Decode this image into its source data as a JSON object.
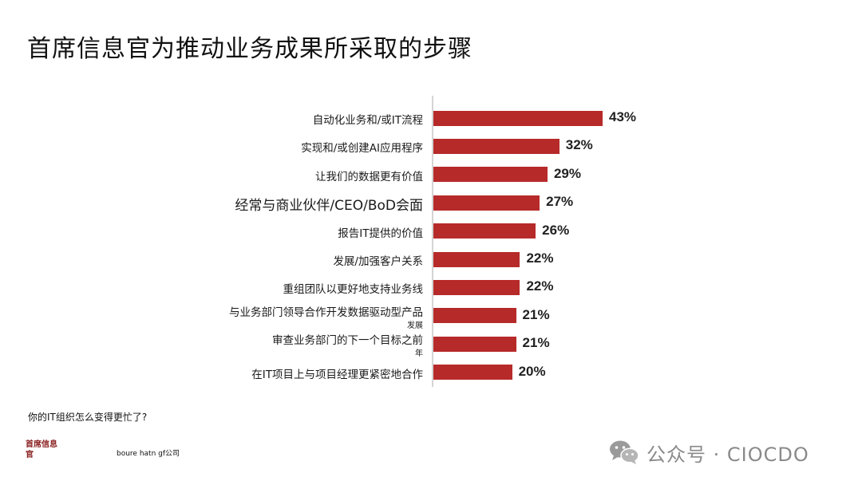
{
  "title": "首席信息官为推动业务成果所采取的步骤",
  "chart_data": {
    "type": "bar",
    "orientation": "horizontal",
    "categories": [
      "自动化业务和/或IT流程",
      "实现和/或创建AI应用程序",
      "让我们的数据更有价值",
      "经常与商业伙伴/CEO/BoD会面",
      "报告IT提供的价值",
      "发展/加强客户关系",
      "重组团队以更好地支持业务线",
      "与业务部门领导合作开发数据驱动型产品",
      "审查业务部门的下一个目标之前",
      "在IT项目上与项目经理更紧密地合作"
    ],
    "sublabels": [
      "",
      "",
      "",
      "",
      "",
      "",
      "",
      "发展",
      "年",
      ""
    ],
    "values": [
      43,
      32,
      29,
      27,
      26,
      22,
      22,
      21,
      21,
      20
    ],
    "value_labels": [
      "43%",
      "32%",
      "29%",
      "27%",
      "26%",
      "22%",
      "22%",
      "21%",
      "21%",
      "20%"
    ],
    "xlim": [
      0,
      50
    ],
    "bar_color": "#b72a2a",
    "grid": false,
    "legend": "none"
  },
  "footnote": "你的IT组织怎么变得更忙了?",
  "brand": "首席信息官",
  "source": "boure hatn gf公司",
  "watermark": "公众号 · CIOCDO"
}
